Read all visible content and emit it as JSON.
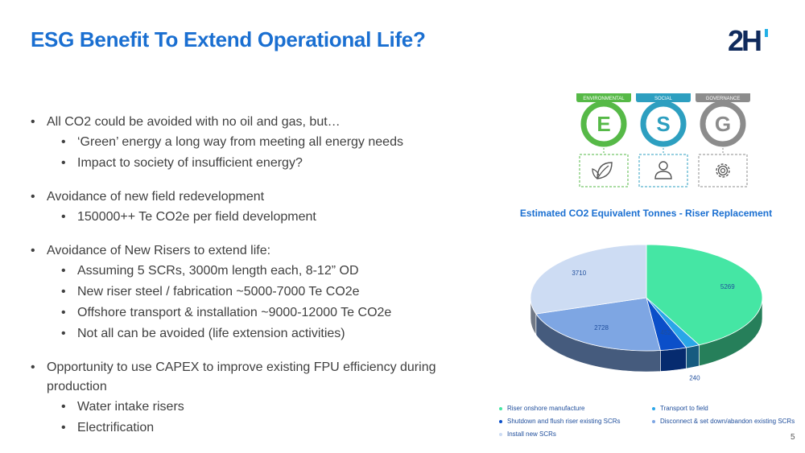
{
  "slide": {
    "title": "ESG Benefit To Extend Operational Life?",
    "page_number": "5",
    "logo_text": "2H"
  },
  "bullets": [
    {
      "text": "All CO2 could be avoided with no oil and gas, but…",
      "sub": [
        "‘Green’ energy a long way from meeting all energy needs",
        "Impact to society of insufficient energy?"
      ]
    },
    {
      "text": "Avoidance of new field redevelopment",
      "sub": [
        "150000++ Te CO2e per field development"
      ]
    },
    {
      "text": "Avoidance of New Risers to extend life:",
      "sub": [
        "Assuming 5 SCRs, 3000m length each,  8-12” OD",
        "New riser steel / fabrication ~5000-7000 Te CO2e",
        "Offshore transport & installation ~9000-12000 Te CO2e",
        "Not all can be avoided (life extension activities)"
      ]
    },
    {
      "text": "Opportunity to use CAPEX to improve existing FPU efficiency during production",
      "sub": [
        "Water intake risers",
        "Electrification"
      ]
    }
  ],
  "esg": {
    "items": [
      {
        "label": "ENVIRONMENTAL",
        "letter": "E",
        "color": "#56b947",
        "icon": "leaf-icon"
      },
      {
        "label": "SOCIAL",
        "letter": "S",
        "color": "#2d9fc0",
        "icon": "person-icon"
      },
      {
        "label": "GOVERNANCE",
        "letter": "G",
        "color": "#8c8c8c",
        "icon": "gear-icon"
      }
    ]
  },
  "chart_data": {
    "type": "pie",
    "title": "Estimated CO2 Equivalent Tonnes - Riser Replacement",
    "slices": [
      {
        "label": "Riser onshore manufacture",
        "value": 5269,
        "display": "5269",
        "color": "#45e6a4"
      },
      {
        "label": "Transport to field",
        "value": 240,
        "display": "240",
        "color": "#2aa6e8"
      },
      {
        "label": "Shutdown and flush riser existing SCRs",
        "value": 452,
        "display": "452",
        "color": "#0b4fc9"
      },
      {
        "label": "Disconnect & set down/abandon existing SCRs",
        "value": 2728,
        "display": "2728",
        "color": "#7ea6e3"
      },
      {
        "label": "Install new SCRs",
        "value": 3710,
        "display": "3710",
        "color": "#cddcf3"
      }
    ]
  }
}
